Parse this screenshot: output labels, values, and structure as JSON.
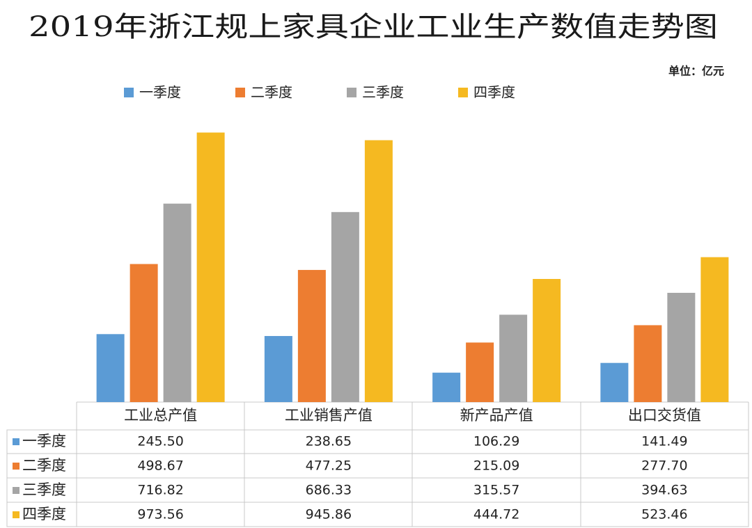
{
  "chart_data": {
    "type": "bar",
    "title": "2019年浙江规上家具企业工业生产数值走势图",
    "unit": "单位：亿元",
    "categories": [
      "工业总产值",
      "工业销售产值",
      "新产品产值",
      "出口交货值"
    ],
    "ylim": [
      0,
      1000
    ],
    "series": [
      {
        "name": "一季度",
        "color": "#5b9bd5",
        "values": [
          245.5,
          238.65,
          106.29,
          141.49
        ],
        "value_labels": [
          "245.50",
          "238.65",
          "106.29",
          "141.49"
        ]
      },
      {
        "name": "二季度",
        "color": "#ed7d31",
        "values": [
          498.67,
          477.25,
          215.09,
          277.7
        ],
        "value_labels": [
          "498.67",
          "477.25",
          "215.09",
          "277.70"
        ]
      },
      {
        "name": "三季度",
        "color": "#a5a5a5",
        "values": [
          716.82,
          686.33,
          315.57,
          394.63
        ],
        "value_labels": [
          "716.82",
          "686.33",
          "315.57",
          "394.63"
        ]
      },
      {
        "name": "四季度",
        "color": "#f5b921",
        "values": [
          973.56,
          945.86,
          444.72,
          523.46
        ],
        "value_labels": [
          "973.56",
          "945.86",
          "444.72",
          "523.46"
        ]
      }
    ]
  }
}
